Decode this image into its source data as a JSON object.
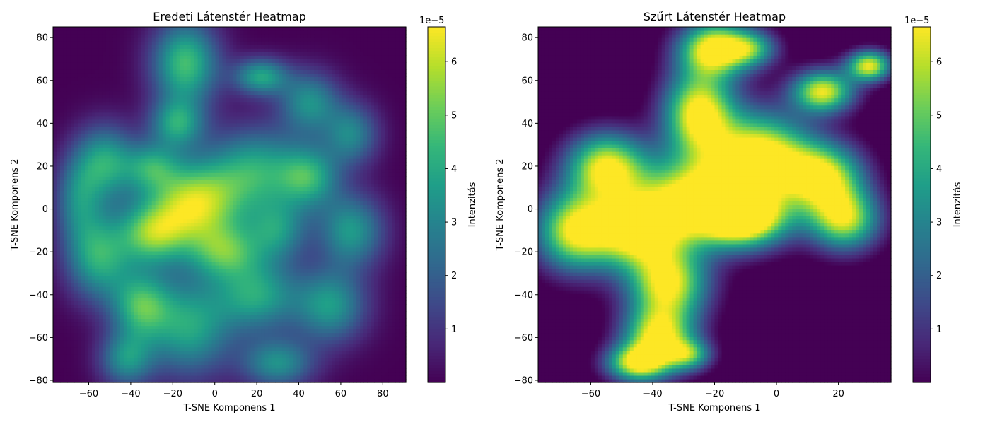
{
  "colors": {
    "colormap": "viridis",
    "viridis_stops": [
      "#440154",
      "#482878",
      "#3e4989",
      "#31688e",
      "#26828e",
      "#1f9e89",
      "#35b779",
      "#6ece58",
      "#b5de2b",
      "#fde725"
    ]
  },
  "chart_data": [
    {
      "type": "heatmap",
      "title": "Eredeti Látenstér Heatmap",
      "xlabel": "T-SNE Komponens 1",
      "ylabel": "T-SNE Komponens 2",
      "xlim": [
        -77,
        91
      ],
      "ylim": [
        -81,
        85
      ],
      "xticks": [
        -60,
        -40,
        -20,
        0,
        20,
        40,
        60,
        80
      ],
      "xtick_labels": [
        "−60",
        "−40",
        "−20",
        "0",
        "20",
        "40",
        "60",
        "80"
      ],
      "yticks": [
        -80,
        -60,
        -40,
        -20,
        0,
        20,
        40,
        60,
        80
      ],
      "ytick_labels": [
        "−80",
        "−60",
        "−40",
        "−20",
        "0",
        "20",
        "40",
        "60",
        "80"
      ],
      "colorbar": {
        "label": "Intenzitás",
        "multiplier_label": "1e−5",
        "range": [
          0.0,
          6.65
        ],
        "ticks": [
          1,
          2,
          3,
          4,
          5,
          6
        ],
        "tick_labels": [
          "1",
          "2",
          "3",
          "4",
          "5",
          "6"
        ]
      },
      "clip_value": null,
      "components": [
        {
          "x": -10,
          "y": 2,
          "sx": 16,
          "sy": 14,
          "w": 2.2
        },
        {
          "x": -30,
          "y": -12,
          "sx": 11,
          "sy": 10,
          "w": 1.5
        },
        {
          "x": -18,
          "y": 40,
          "sx": 9,
          "sy": 8,
          "w": 1.3
        },
        {
          "x": -14,
          "y": 68,
          "sx": 11,
          "sy": 14,
          "w": 1.7
        },
        {
          "x": 22,
          "y": 62,
          "sx": 9,
          "sy": 6,
          "w": 1.4
        },
        {
          "x": 20,
          "y": 18,
          "sx": 16,
          "sy": 14,
          "w": 1.4
        },
        {
          "x": -52,
          "y": 22,
          "sx": 10,
          "sy": 12,
          "w": 1.4
        },
        {
          "x": -30,
          "y": 20,
          "sx": 9,
          "sy": 8,
          "w": 1.1
        },
        {
          "x": -55,
          "y": -22,
          "sx": 11,
          "sy": 14,
          "w": 1.5
        },
        {
          "x": -35,
          "y": -45,
          "sx": 10,
          "sy": 11,
          "w": 1.5
        },
        {
          "x": -42,
          "y": -70,
          "sx": 9,
          "sy": 9,
          "w": 1.2
        },
        {
          "x": -12,
          "y": -55,
          "sx": 14,
          "sy": 16,
          "w": 1.4
        },
        {
          "x": 20,
          "y": -40,
          "sx": 14,
          "sy": 12,
          "w": 1.4
        },
        {
          "x": 30,
          "y": -72,
          "sx": 12,
          "sy": 8,
          "w": 1.2
        },
        {
          "x": 55,
          "y": -45,
          "sx": 12,
          "sy": 12,
          "w": 1.3
        },
        {
          "x": 65,
          "y": -10,
          "sx": 11,
          "sy": 12,
          "w": 1.3
        },
        {
          "x": 45,
          "y": 15,
          "sx": 10,
          "sy": 10,
          "w": 1.3
        },
        {
          "x": 65,
          "y": 35,
          "sx": 9,
          "sy": 10,
          "w": 1.1
        },
        {
          "x": 45,
          "y": 50,
          "sx": 10,
          "sy": 10,
          "w": 1.2
        },
        {
          "x": 5,
          "y": -20,
          "sx": 12,
          "sy": 9,
          "w": 1.3
        },
        {
          "x": -65,
          "y": 5,
          "sx": 8,
          "sy": 14,
          "w": 1.0
        },
        {
          "x": 30,
          "y": -10,
          "sx": 10,
          "sy": 10,
          "w": 1.1
        }
      ]
    },
    {
      "type": "heatmap",
      "title": "Szűrt Látenstér Heatmap",
      "xlabel": "T-SNE Komponens 1",
      "ylabel": "T-SNE Komponens 2",
      "xlim": [
        -77,
        37
      ],
      "ylim": [
        -81,
        85
      ],
      "xticks": [
        -60,
        -40,
        -20,
        0,
        20
      ],
      "xtick_labels": [
        "−60",
        "−40",
        "−20",
        "0",
        "20"
      ],
      "yticks": [
        -80,
        -60,
        -40,
        -20,
        0,
        20,
        40,
        60,
        80
      ],
      "ytick_labels": [
        "−80",
        "−60",
        "−40",
        "−20",
        "0",
        "20",
        "40",
        "60",
        "80"
      ],
      "colorbar": {
        "label": "Intenzitás",
        "multiplier_label": "1e−5",
        "range": [
          0.0,
          6.65
        ],
        "ticks": [
          1,
          2,
          3,
          4,
          5,
          6
        ],
        "tick_labels": [
          "1",
          "2",
          "3",
          "4",
          "5",
          "6"
        ]
      },
      "clip_value": 6.65,
      "components": [
        {
          "x": -25,
          "y": 5,
          "sx": 14,
          "sy": 14,
          "w": 2.6
        },
        {
          "x": -55,
          "y": 20,
          "sx": 9,
          "sy": 11,
          "w": 2.4
        },
        {
          "x": -65,
          "y": -10,
          "sx": 9,
          "sy": 13,
          "w": 2.4
        },
        {
          "x": -45,
          "y": -10,
          "sx": 10,
          "sy": 12,
          "w": 2.4
        },
        {
          "x": -25,
          "y": 45,
          "sx": 8,
          "sy": 14,
          "w": 2.6
        },
        {
          "x": -20,
          "y": 75,
          "sx": 8,
          "sy": 9,
          "w": 2.6
        },
        {
          "x": -5,
          "y": 25,
          "sx": 11,
          "sy": 14,
          "w": 2.6
        },
        {
          "x": 15,
          "y": 15,
          "sx": 9,
          "sy": 11,
          "w": 2.4
        },
        {
          "x": 22,
          "y": -5,
          "sx": 8,
          "sy": 10,
          "w": 2.2
        },
        {
          "x": 15,
          "y": 55,
          "sx": 7,
          "sy": 7,
          "w": 2.4
        },
        {
          "x": 30,
          "y": 67,
          "sx": 5,
          "sy": 5,
          "w": 2.4
        },
        {
          "x": -8,
          "y": 75,
          "sx": 6,
          "sy": 6,
          "w": 1.4
        },
        {
          "x": -10,
          "y": -5,
          "sx": 10,
          "sy": 9,
          "w": 2.4
        },
        {
          "x": -35,
          "y": -35,
          "sx": 9,
          "sy": 12,
          "w": 2.4
        },
        {
          "x": -38,
          "y": -60,
          "sx": 8,
          "sy": 10,
          "w": 2.4
        },
        {
          "x": -45,
          "y": -72,
          "sx": 7,
          "sy": 6,
          "w": 2.2
        },
        {
          "x": -28,
          "y": -68,
          "sx": 5,
          "sy": 5,
          "w": 1.4
        }
      ]
    }
  ]
}
